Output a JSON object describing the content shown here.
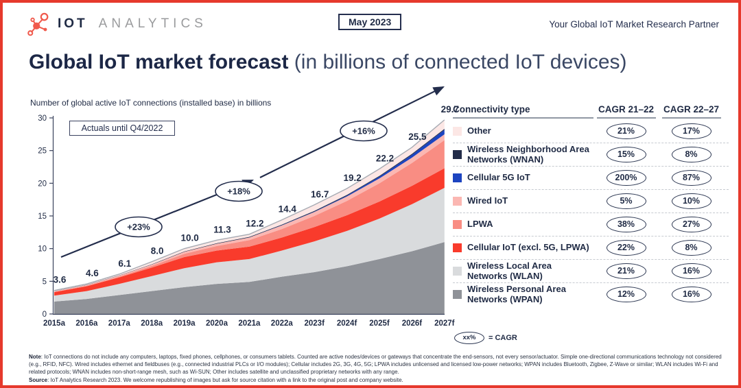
{
  "header": {
    "brand_bold": "IOT",
    "brand_light": "ANALYTICS",
    "logo_icon": "molecule-icon",
    "logo_color": "#f05a4d",
    "date_badge": "May 2023",
    "tagline": "Your Global IoT Market Research Partner"
  },
  "title": {
    "bold": "Global IoT market forecast",
    "rest": " (in billions of connected IoT devices)"
  },
  "chart": {
    "axis_caption": "Number of global active IoT connections (installed base) in billions",
    "actuals_note": "Actuals until Q4/2022"
  },
  "chart_data": {
    "type": "area",
    "stacked": true,
    "title": "Global IoT market forecast (in billions of connected IoT devices)",
    "ylabel": "Number of global active IoT connections (installed base) in billions",
    "ylim": [
      0,
      30
    ],
    "yticks": [
      0,
      5,
      10,
      15,
      20,
      25,
      30
    ],
    "grid": false,
    "x": [
      "2015a",
      "2016a",
      "2017a",
      "2018a",
      "2019a",
      "2020a",
      "2021a",
      "2022a",
      "2023f",
      "2024f",
      "2025f",
      "2026f",
      "2027f"
    ],
    "total_labels": [
      "3.6",
      "4.6",
      "6.1",
      "8.0",
      "10.0",
      "11.3",
      "12.2",
      "14.4",
      "16.7",
      "19.2",
      "22.2",
      "25.5",
      "29.7"
    ],
    "growth_annotations": [
      "+23%",
      "+18%",
      "+16%"
    ],
    "series": [
      {
        "name": "Wireless Personal Area Networks (WPAN)",
        "color": "#8f9298",
        "values": [
          1.9,
          2.3,
          2.9,
          3.5,
          4.1,
          4.6,
          4.9,
          5.7,
          6.4,
          7.3,
          8.4,
          9.6,
          11.0
        ]
      },
      {
        "name": "Wireless Local Area Networks (WLAN)",
        "color": "#d9dbdd",
        "values": [
          0.9,
          1.2,
          1.7,
          2.3,
          2.9,
          3.3,
          3.5,
          4.0,
          4.7,
          5.4,
          6.2,
          7.2,
          8.3
        ]
      },
      {
        "name": "Cellular IoT (excl. 5G, LPWA)",
        "color": "#f93b2c",
        "values": [
          0.55,
          0.75,
          1.0,
          1.3,
          1.7,
          1.8,
          1.9,
          2.0,
          2.2,
          2.4,
          2.6,
          2.8,
          3.0
        ]
      },
      {
        "name": "LPWA",
        "color": "#f98d83",
        "values": [
          0.02,
          0.06,
          0.12,
          0.25,
          0.5,
          0.7,
          1.0,
          1.3,
          1.7,
          2.2,
          2.8,
          3.5,
          4.3
        ]
      },
      {
        "name": "Wired IoT",
        "color": "#fbb7b2",
        "values": [
          0.1,
          0.12,
          0.15,
          0.2,
          0.3,
          0.35,
          0.4,
          0.55,
          0.6,
          0.67,
          0.74,
          0.81,
          0.9
        ]
      },
      {
        "name": "Cellular 5G IoT",
        "color": "#1d44c0",
        "values": [
          0,
          0,
          0,
          0,
          0.001,
          0.005,
          0.01,
          0.03,
          0.06,
          0.13,
          0.26,
          0.45,
          0.69
        ]
      },
      {
        "name": "Wireless Neighborhood Area Networks (WNAN)",
        "color": "#222c49",
        "values": [
          0.03,
          0.04,
          0.05,
          0.06,
          0.07,
          0.08,
          0.09,
          0.1,
          0.11,
          0.12,
          0.13,
          0.14,
          0.15
        ]
      },
      {
        "name": "Other",
        "color": "#fce7e5",
        "values": [
          0.1,
          0.13,
          0.18,
          0.39,
          0.43,
          0.465,
          0.4,
          0.72,
          0.93,
          0.98,
          1.07,
          1.0,
          1.36
        ]
      }
    ]
  },
  "legend": {
    "col_type": "Connectivity type",
    "col_cagr1": "CAGR 21–22",
    "col_cagr2": "CAGR 22–27",
    "rows": [
      {
        "label": "Other",
        "color": "#fce7e5",
        "cagr_21_22": "21%",
        "cagr_22_27": "17%"
      },
      {
        "label": "Wireless Neighborhood Area Networks (WNAN)",
        "color": "#222c49",
        "cagr_21_22": "15%",
        "cagr_22_27": "8%"
      },
      {
        "label": "Cellular 5G IoT",
        "color": "#1d44c0",
        "cagr_21_22": "200%",
        "cagr_22_27": "87%"
      },
      {
        "label": "Wired IoT",
        "color": "#fbb7b2",
        "cagr_21_22": "5%",
        "cagr_22_27": "10%"
      },
      {
        "label": "LPWA",
        "color": "#f98d83",
        "cagr_21_22": "38%",
        "cagr_22_27": "27%"
      },
      {
        "label": "Cellular IoT (excl. 5G, LPWA)",
        "color": "#f93b2c",
        "cagr_21_22": "22%",
        "cagr_22_27": "8%"
      },
      {
        "label": "Wireless Local Area Networks (WLAN)",
        "color": "#d9dbdd",
        "cagr_21_22": "21%",
        "cagr_22_27": "16%"
      },
      {
        "label": "Wireless Personal Area Networks (WPAN)",
        "color": "#8f9298",
        "cagr_21_22": "12%",
        "cagr_22_27": "16%"
      }
    ],
    "key_badge": "xx%",
    "key_equals": "= CAGR"
  },
  "footer": {
    "note_label": "Note",
    "note_text": ": IoT connections do not include any computers, laptops, fixed phones, cellphones, or consumers tablets. Counted are active nodes/devices or gateways that concentrate the end-sensors, not every sensor/actuator. Simple one-directional communications technology not considered (e.g., RFID, NFC). Wired includes ethernet and fieldbuses (e.g., connected industrial PLCs or I/O modules); Cellular includes 2G, 3G, 4G, 5G; LPWA includes unlicensed and licensed low-power networks; WPAN includes Bluetooth, Zigbee, Z-Wave or similar; WLAN includes Wi-Fi and related protocols; WNAN includes non-short-range mesh, such as Wi-SUN; Other includes satellite and unclassified proprietary networks with any range.",
    "source_label": "Source",
    "source_text": ": IoT Analytics Research 2023. We welcome republishing of images but ask for source citation with a link to the original post and company website."
  }
}
